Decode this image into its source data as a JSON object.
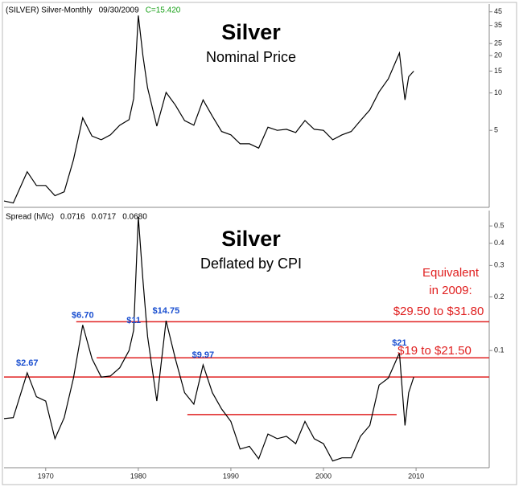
{
  "chart_data": [
    {
      "type": "line",
      "header": [
        "(SILVER) Silver-Monthly",
        "09/30/2009",
        "C=15.420"
      ],
      "title": "Silver",
      "subtitle": "Nominal Price",
      "log_scale": true,
      "color": "#000000",
      "x": [
        1965.5,
        1966.5,
        1968,
        1969,
        1970,
        1971,
        1972,
        1973,
        1974,
        1975,
        1976,
        1977,
        1978,
        1979,
        1979.5,
        1980,
        1980.5,
        1981,
        1982,
        1983,
        1984,
        1985,
        1986,
        1987,
        1988,
        1989,
        1990,
        1991,
        1992,
        1993,
        1994,
        1995,
        1996,
        1997,
        1998,
        1999,
        2000,
        2001,
        2002,
        2003,
        2004,
        2005,
        2006,
        2007,
        2008.2,
        2008.8,
        2009.2,
        2009.75
      ],
      "values": [
        1.35,
        1.3,
        2.32,
        1.8,
        1.8,
        1.49,
        1.6,
        2.9,
        6.3,
        4.5,
        4.2,
        4.6,
        5.5,
        6.1,
        9,
        42,
        20,
        11,
        5.4,
        10.1,
        8,
        6,
        5.5,
        8.8,
        6.5,
        4.9,
        4.6,
        3.9,
        3.9,
        3.6,
        5.3,
        5,
        5.1,
        4.8,
        6,
        5.1,
        5,
        4.2,
        4.6,
        4.9,
        6,
        7.3,
        10.2,
        13,
        21,
        8.8,
        13.5,
        15
      ],
      "xlim": [
        1965.5,
        2017.9
      ],
      "ylim": [
        1.2,
        52
      ],
      "yticks": [
        5,
        10,
        15,
        20,
        25,
        35,
        45
      ]
    },
    {
      "type": "line",
      "header": [
        "Spread (h/l/c)",
        "0.0716",
        "0.0717",
        "0.0680"
      ],
      "title": "Silver",
      "subtitle": "Deflated by CPI",
      "log_scale": true,
      "color": "#000000",
      "x": [
        1965.5,
        1966.5,
        1968,
        1969,
        1970,
        1971,
        1972,
        1973,
        1974,
        1975,
        1976,
        1977,
        1978,
        1979,
        1979.5,
        1980,
        1980.5,
        1981,
        1982,
        1983,
        1984,
        1985,
        1986,
        1987,
        1988,
        1989,
        1990,
        1991,
        1992,
        1993,
        1994,
        1995,
        1996,
        1997,
        1998,
        1999,
        2000,
        2001,
        2002,
        2003,
        2004,
        2005,
        2006,
        2007,
        2008.2,
        2008.8,
        2009.2,
        2009.75
      ],
      "values": [
        0.0415,
        0.042,
        0.075,
        0.055,
        0.052,
        0.032,
        0.042,
        0.07,
        0.139,
        0.09,
        0.071,
        0.072,
        0.08,
        0.1,
        0.13,
        0.56,
        0.25,
        0.12,
        0.052,
        0.147,
        0.09,
        0.058,
        0.05,
        0.083,
        0.058,
        0.047,
        0.04,
        0.028,
        0.029,
        0.0247,
        0.034,
        0.032,
        0.033,
        0.03,
        0.04,
        0.032,
        0.03,
        0.024,
        0.025,
        0.025,
        0.033,
        0.038,
        0.064,
        0.07,
        0.097,
        0.038,
        0.058,
        0.071
      ],
      "xlim": [
        1965.5,
        2017.9
      ],
      "ylim": [
        0.022,
        0.61
      ],
      "yticks": [
        0.1,
        0.2,
        0.3,
        0.4,
        0.5
      ],
      "xticks": [
        1970,
        1980,
        1990,
        2000,
        2010
      ],
      "reference_lines": [
        {
          "value": 0.145,
          "x": [
            1973.3,
            2017.9
          ],
          "color": "#e02020"
        },
        {
          "value": 0.091,
          "x": [
            1975.5,
            2017.9
          ],
          "color": "#e02020"
        },
        {
          "value": 0.071,
          "x": [
            1965.5,
            2017.9
          ],
          "color": "#e02020"
        },
        {
          "value": 0.0437,
          "x": [
            1985.3,
            2007.9
          ],
          "color": "#e02020"
        }
      ],
      "annotations": [
        {
          "text": "$2.67",
          "x": 1968,
          "y": 0.075
        },
        {
          "text": "$6.70",
          "x": 1974,
          "y": 0.139
        },
        {
          "text": "$11",
          "x": 1979.5,
          "y": 0.13
        },
        {
          "text": "$14.75",
          "x": 1983,
          "y": 0.147
        },
        {
          "text": "$9.97",
          "x": 1987,
          "y": 0.083
        },
        {
          "text": "$21",
          "x": 2008.2,
          "y": 0.097
        }
      ],
      "notes": [
        "Equivalent",
        "in 2009:",
        "$29.50 to $31.80",
        "$19 to $21.50"
      ]
    }
  ]
}
